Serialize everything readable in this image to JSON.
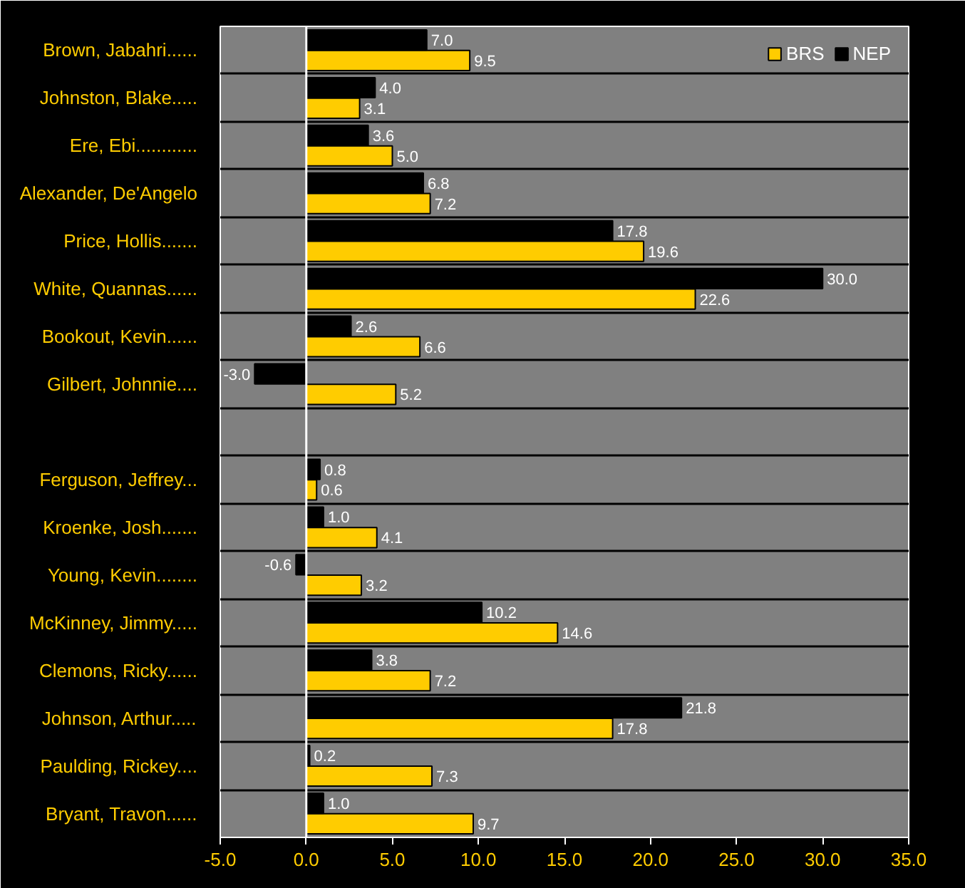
{
  "chart_data": {
    "type": "bar",
    "orientation": "horizontal",
    "categories": [
      "Brown, Jabahri......",
      "Johnston, Blake.....",
      "Ere, Ebi............",
      "Alexander, De'Angelo",
      "Price, Hollis.......",
      "White, Quannas......",
      "Bookout, Kevin......",
      "Gilbert, Johnnie....",
      null,
      "Ferguson, Jeffrey...",
      "Kroenke, Josh.......",
      "Young, Kevin........",
      "McKinney, Jimmy.....",
      "Clemons, Ricky......",
      "Johnson, Arthur.....",
      "Paulding, Rickey....",
      "Bryant, Travon......"
    ],
    "series": [
      {
        "name": "BRS",
        "color": "#ffcc00",
        "values": [
          9.5,
          3.1,
          5.0,
          7.2,
          19.6,
          22.6,
          6.6,
          5.2,
          null,
          0.6,
          4.1,
          3.2,
          14.6,
          7.2,
          17.8,
          7.3,
          9.7
        ],
        "value_labels": [
          "9.5",
          "3.1",
          "5.0",
          "7.2",
          "19.6",
          "22.6",
          "6.6",
          "5.2",
          null,
          "0.6",
          "4.1",
          "3.2",
          "14.6",
          "7.2",
          "17.8",
          "7.3",
          "9.7"
        ]
      },
      {
        "name": "NEP",
        "color": "#000000",
        "values": [
          7.0,
          4.0,
          3.6,
          6.8,
          17.8,
          30.0,
          2.6,
          -3.0,
          null,
          0.8,
          1.0,
          -0.6,
          10.2,
          3.8,
          21.8,
          0.2,
          1.0
        ],
        "value_labels": [
          "7.0",
          "4.0",
          "3.6",
          "6.8",
          "17.8",
          "30.0",
          "2.6",
          "-3.0",
          null,
          "0.8",
          "1.0",
          "-0.6",
          "10.2",
          "3.8",
          "21.8",
          "0.2",
          "1.0"
        ]
      }
    ],
    "xlim": [
      -5,
      35
    ],
    "xticks": [
      {
        "value": -5,
        "label": "-5.0"
      },
      {
        "value": 0,
        "label": "0.0"
      },
      {
        "value": 5,
        "label": "5.0"
      },
      {
        "value": 10,
        "label": "10.0"
      },
      {
        "value": 15,
        "label": "15.0"
      },
      {
        "value": 20,
        "label": "20.0"
      },
      {
        "value": 25,
        "label": "25.0"
      },
      {
        "value": 30,
        "label": "30.0"
      },
      {
        "value": 35,
        "label": "35.0"
      }
    ],
    "ref_lines": [
      {
        "axis": "x",
        "value": 0,
        "color": "#ffffff"
      }
    ],
    "grid": "y",
    "legend": "top right"
  }
}
